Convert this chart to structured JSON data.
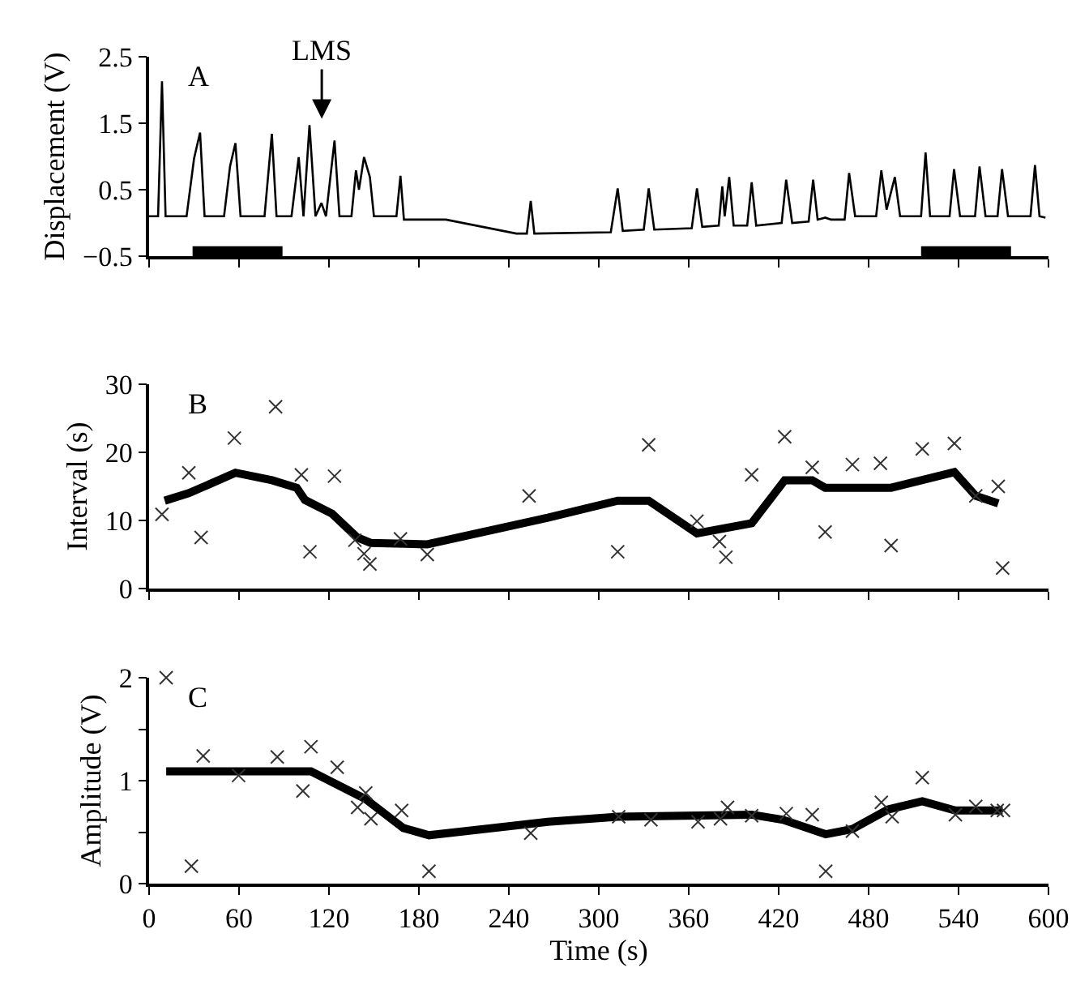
{
  "chart_data": [
    {
      "type": "line",
      "ylabel": "Displacement (V)",
      "annotations": [
        "A",
        "LMS"
      ],
      "xlim": [
        0,
        600
      ],
      "xticks": [
        0,
        60,
        120,
        180,
        240,
        300,
        360,
        420,
        480,
        540,
        600
      ],
      "ylim": [
        -0.5,
        2.5
      ],
      "yticks": [
        2.5,
        1.5,
        0.5,
        {
          "value": -0.5,
          "label": "−0.5"
        }
      ],
      "tick_labels": "y",
      "marker": "none",
      "line_style": "solid",
      "bands": [
        {
          "axis": "x",
          "from": 29,
          "to": 89,
          "color": "#000000"
        },
        {
          "axis": "x",
          "from": 515,
          "to": 575,
          "color": "#000000"
        }
      ],
      "series": [
        {
          "color": "#000000",
          "x": [
            0,
            6,
            8.6,
            11,
            25,
            30,
            34,
            37,
            50,
            54,
            57.6,
            61,
            77,
            81.9,
            85,
            95,
            99.8,
            103,
            107,
            111,
            115,
            118,
            123.7,
            127,
            135,
            138,
            140,
            143.4,
            147.3,
            150,
            165,
            167.7,
            170,
            198,
            245,
            252,
            254.6,
            257,
            308,
            312.6,
            316,
            330,
            333.3,
            337,
            362,
            365.5,
            369,
            380,
            382.4,
            384,
            387,
            390,
            399,
            402,
            405,
            422,
            425,
            429,
            440,
            443,
            446,
            451,
            455,
            464,
            467,
            471,
            485,
            488.5,
            492,
            497.5,
            501,
            515,
            518,
            521,
            534,
            537,
            541,
            551,
            554,
            558,
            566,
            569,
            573,
            588,
            591,
            594,
            598
          ],
          "values": [
            0.1,
            0.1,
            2.13,
            0.1,
            0.1,
            0.97,
            1.36,
            0.1,
            0.1,
            0.85,
            1.2,
            0.1,
            0.1,
            1.34,
            0.1,
            0.1,
            0.99,
            0.1,
            1.47,
            0.1,
            0.3,
            0.1,
            1.24,
            0.1,
            0.1,
            0.79,
            0.5,
            0.99,
            0.69,
            0.1,
            0.1,
            0.71,
            0.05,
            0.05,
            -0.16,
            -0.16,
            0.33,
            -0.16,
            -0.14,
            0.52,
            -0.12,
            -0.1,
            0.52,
            -0.1,
            -0.08,
            0.52,
            -0.06,
            -0.04,
            0.55,
            0.1,
            0.69,
            -0.04,
            -0.04,
            0.61,
            -0.04,
            0,
            0.65,
            0,
            0.02,
            0.65,
            0.05,
            0.08,
            0.05,
            0.05,
            0.75,
            0.1,
            0.1,
            0.79,
            0.2,
            0.69,
            0.1,
            0.1,
            1.06,
            0.1,
            0.1,
            0.81,
            0.1,
            0.1,
            0.85,
            0.1,
            0.1,
            0.81,
            0.1,
            0.1,
            0.87,
            0.1,
            0.08
          ]
        }
      ]
    },
    {
      "type": "line",
      "ylabel": "Interval (s)",
      "annotations": [
        "B"
      ],
      "xlim": [
        0,
        600
      ],
      "xticks": [
        0,
        60,
        120,
        180,
        240,
        300,
        360,
        420,
        480,
        540,
        600
      ],
      "ylim": [
        0,
        30
      ],
      "yticks": [
        0,
        10,
        20,
        30
      ],
      "tick_labels": "y",
      "series": [
        {
          "type": "scatter",
          "marker": "cross",
          "color": "#333333",
          "x": [
            8.6,
            26.5,
            34.7,
            56.9,
            84.4,
            101.6,
            107.3,
            123.7,
            137.3,
            143.4,
            147.3,
            167.7,
            185.6,
            253.5,
            312.6,
            333.3,
            365.5,
            380.5,
            384.8,
            402,
            424,
            442.4,
            451,
            469.2,
            487.9,
            495,
            515.8,
            537.2,
            551.5,
            566.5,
            569.4
          ],
          "values": [
            10.9,
            17.0,
            7.5,
            22.1,
            26.7,
            16.7,
            5.4,
            16.5,
            7.1,
            5.1,
            3.6,
            7.3,
            5.0,
            13.6,
            5.4,
            21.1,
            9.9,
            6.9,
            4.6,
            16.7,
            22.3,
            17.8,
            8.3,
            18.2,
            18.4,
            6.3,
            20.5,
            21.3,
            13.6,
            15.0,
            3.0
          ]
        },
        {
          "type": "line",
          "marker": "none",
          "color": "#000000",
          "x": [
            10.4,
            26.5,
            57.6,
            82,
            98.5,
            104,
            122,
            138.8,
            147.8,
            185.6,
            266,
            312.6,
            333.3,
            365.5,
            402,
            424,
            442.4,
            451,
            495,
            537.2,
            551.5,
            566.5
          ],
          "values": [
            12.9,
            14.0,
            17.0,
            15.9,
            14.8,
            13.0,
            11.0,
            7.5,
            6.7,
            6.5,
            10.4,
            12.9,
            12.9,
            8.1,
            9.6,
            15.9,
            15.9,
            14.8,
            14.8,
            17.1,
            13.6,
            12.5
          ]
        }
      ]
    },
    {
      "type": "line",
      "ylabel": "Amplitude (V)",
      "xlabel": "Time (s)",
      "annotations": [
        "C"
      ],
      "xlim": [
        0,
        600
      ],
      "xticks": [
        0,
        60,
        120,
        180,
        240,
        300,
        360,
        420,
        480,
        540,
        600
      ],
      "ylim": [
        0,
        2
      ],
      "yticks": [
        0,
        {
          "value": 0.5,
          "label": null
        },
        1,
        {
          "value": 1.5,
          "label": null
        },
        2
      ],
      "series": [
        {
          "type": "scatter",
          "marker": "cross",
          "color": "#333333",
          "x": [
            11.4,
            28.2,
            36.1,
            59.7,
            85.5,
            102.6,
            108,
            125.5,
            139.1,
            144.5,
            148,
            168.5,
            186.7,
            254.6,
            313.3,
            334.8,
            366.2,
            381.2,
            385.9,
            402,
            425.1,
            442.4,
            451.4,
            469.2,
            488.5,
            495.7,
            515.8,
            537.9,
            551.5,
            565.8,
            570
          ],
          "values": [
            2.0,
            0.17,
            1.24,
            1.05,
            1.23,
            0.9,
            1.33,
            1.13,
            0.74,
            0.88,
            0.63,
            0.71,
            0.12,
            0.49,
            0.65,
            0.62,
            0.6,
            0.63,
            0.74,
            0.66,
            0.68,
            0.67,
            0.12,
            0.51,
            0.79,
            0.65,
            1.03,
            0.67,
            0.75,
            0.71,
            0.71
          ]
        },
        {
          "type": "line",
          "marker": "none",
          "color": "#000000",
          "x": [
            11.4,
            108,
            144.5,
            169.6,
            186.7,
            266,
            312.6,
            402,
            423,
            451.4,
            469.2,
            493,
            515.8,
            537.9,
            569.4
          ],
          "values": [
            1.09,
            1.09,
            0.82,
            0.54,
            0.47,
            0.6,
            0.65,
            0.67,
            0.62,
            0.48,
            0.53,
            0.72,
            0.8,
            0.71,
            0.71
          ]
        }
      ]
    }
  ]
}
